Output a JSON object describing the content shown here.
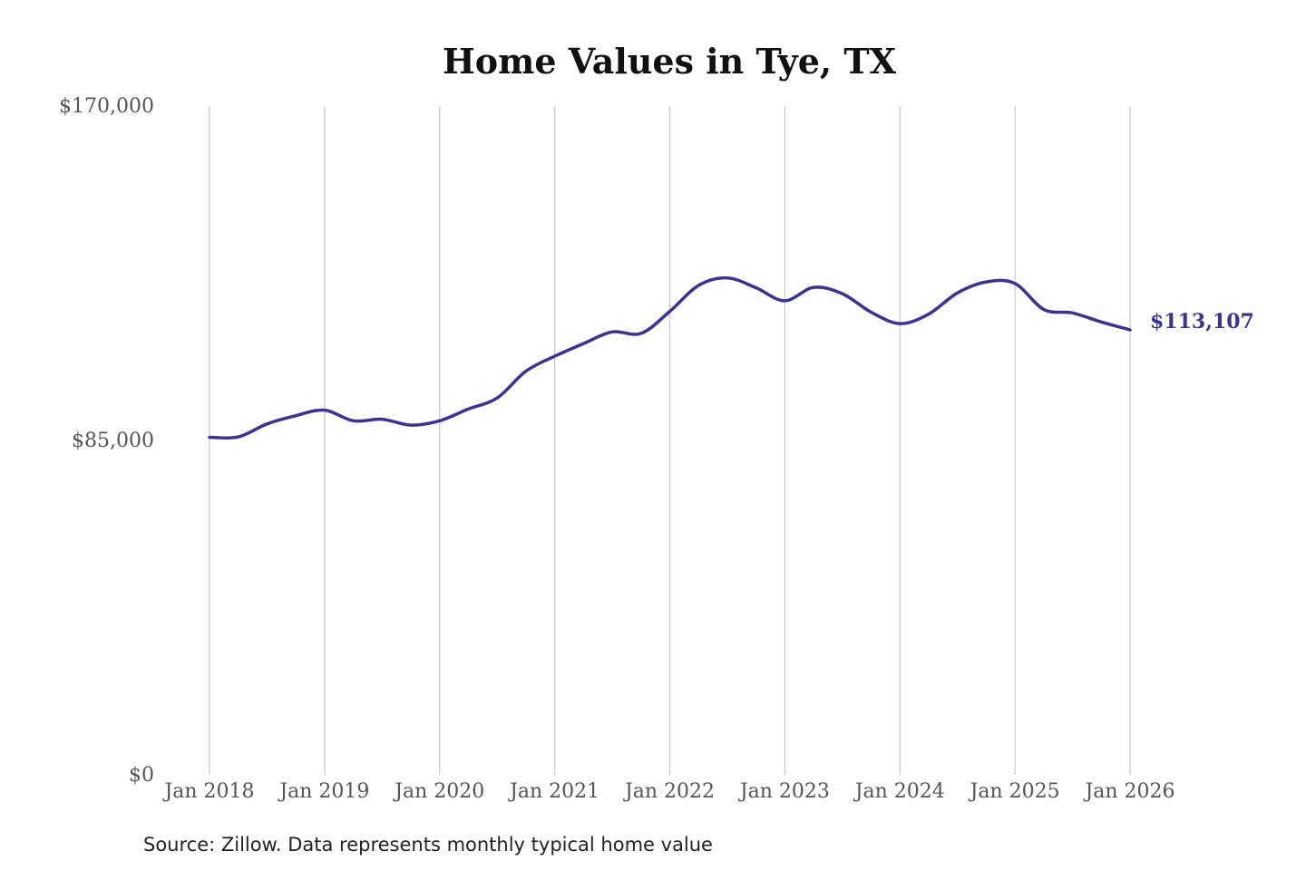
{
  "chart_data": {
    "type": "line",
    "title": "Home Values in Tye, TX",
    "xlabel": "",
    "ylabel": "",
    "source": "Source: Zillow. Data represents monthly typical home value",
    "ylim": [
      0,
      170000
    ],
    "y_ticks": [
      {
        "value": 0,
        "label": "$0"
      },
      {
        "value": 85000,
        "label": "$85,000"
      },
      {
        "value": 170000,
        "label": "$170,000"
      }
    ],
    "x_ticks": [
      {
        "value": "2018-01",
        "label": "Jan 2018"
      },
      {
        "value": "2019-01",
        "label": "Jan 2019"
      },
      {
        "value": "2020-01",
        "label": "Jan 2020"
      },
      {
        "value": "2021-01",
        "label": "Jan 2021"
      },
      {
        "value": "2022-01",
        "label": "Jan 2022"
      },
      {
        "value": "2023-01",
        "label": "Jan 2023"
      },
      {
        "value": "2024-01",
        "label": "Jan 2024"
      },
      {
        "value": "2025-01",
        "label": "Jan 2025"
      },
      {
        "value": "2026-01",
        "label": "Jan 2026"
      }
    ],
    "grid": {
      "vertical": true,
      "horizontal": false
    },
    "end_label": "$113,107",
    "series": [
      {
        "color": "#3a3392",
        "points": [
          {
            "x": "2018-01",
            "y": 85800
          },
          {
            "x": "2018-04",
            "y": 85900
          },
          {
            "x": "2018-07",
            "y": 89200
          },
          {
            "x": "2018-10",
            "y": 91300
          },
          {
            "x": "2019-01",
            "y": 92700
          },
          {
            "x": "2019-04",
            "y": 90000
          },
          {
            "x": "2019-07",
            "y": 90400
          },
          {
            "x": "2019-10",
            "y": 88900
          },
          {
            "x": "2020-01",
            "y": 90000
          },
          {
            "x": "2020-04",
            "y": 93000
          },
          {
            "x": "2020-07",
            "y": 95800
          },
          {
            "x": "2020-10",
            "y": 102600
          },
          {
            "x": "2021-01",
            "y": 106400
          },
          {
            "x": "2021-04",
            "y": 109600
          },
          {
            "x": "2021-07",
            "y": 112600
          },
          {
            "x": "2021-10",
            "y": 112200
          },
          {
            "x": "2022-01",
            "y": 117800
          },
          {
            "x": "2022-04",
            "y": 124400
          },
          {
            "x": "2022-07",
            "y": 126300
          },
          {
            "x": "2022-10",
            "y": 123800
          },
          {
            "x": "2023-01",
            "y": 120500
          },
          {
            "x": "2023-04",
            "y": 123900
          },
          {
            "x": "2023-07",
            "y": 122300
          },
          {
            "x": "2023-10",
            "y": 117600
          },
          {
            "x": "2024-01",
            "y": 114700
          },
          {
            "x": "2024-04",
            "y": 117100
          },
          {
            "x": "2024-07",
            "y": 122500
          },
          {
            "x": "2024-10",
            "y": 125300
          },
          {
            "x": "2025-01",
            "y": 124900
          },
          {
            "x": "2025-04",
            "y": 118300
          },
          {
            "x": "2025-07",
            "y": 117400
          },
          {
            "x": "2025-10",
            "y": 115100
          },
          {
            "x": "2026-01",
            "y": 113107
          }
        ]
      }
    ]
  }
}
